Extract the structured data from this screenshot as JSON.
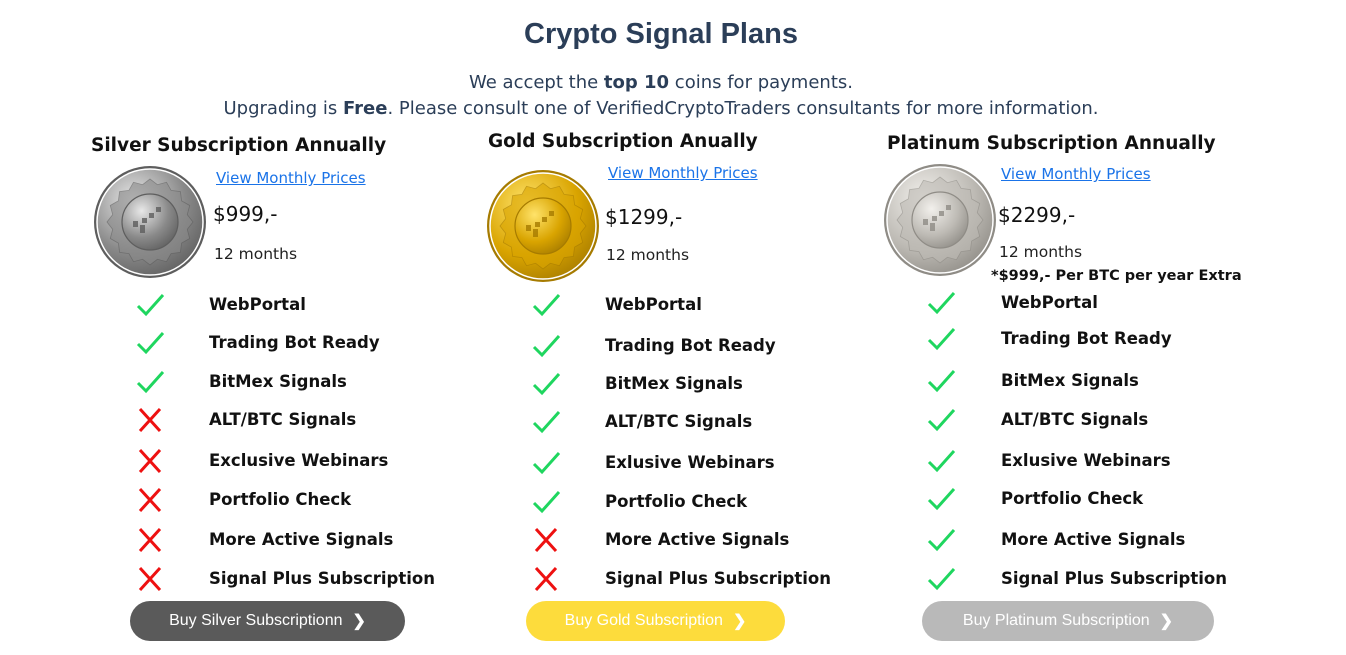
{
  "header": {
    "title": "Crypto Signal Plans",
    "line1_pre": "We accept the ",
    "line1_bold": "top 10",
    "line1_post": " coins for payments.",
    "line2_pre": "Upgrading is ",
    "line2_bold": "Free",
    "line2_post": ". Please consult one of VerifiedCryptoTraders consultants for more information."
  },
  "colors": {
    "check": "#1fd65f",
    "cross": "#ee1111",
    "silver_button": "#5a5a5a",
    "gold_button": "#fddc3c",
    "platinum_button": "#b9b9b9",
    "link": "#1a73e8",
    "title": "#2b3e58"
  },
  "plans": [
    {
      "title": "Silver Subscription Annually",
      "link": "View Monthly Prices",
      "price": "$999,-",
      "duration": "12 months",
      "coin": "silver",
      "features": [
        {
          "label": "WebPortal",
          "included": true
        },
        {
          "label": "Trading Bot Ready",
          "included": true
        },
        {
          "label": "BitMex Signals",
          "included": true
        },
        {
          "label": "ALT/BTC Signals",
          "included": false
        },
        {
          "label": "Exclusive Webinars",
          "included": false
        },
        {
          "label": "Portfolio Check",
          "included": false
        },
        {
          "label": "More Active Signals",
          "included": false
        },
        {
          "label": "Signal Plus Subscription",
          "included": false
        }
      ],
      "button": "Buy Silver Subscriptionn"
    },
    {
      "title": "Gold Subscription Anually",
      "link": "View Monthly Prices",
      "price": "$1299,-",
      "duration": "12 months",
      "coin": "gold",
      "features": [
        {
          "label": "WebPortal",
          "included": true
        },
        {
          "label": "Trading Bot Ready",
          "included": true
        },
        {
          "label": "BitMex Signals",
          "included": true
        },
        {
          "label": "ALT/BTC Signals",
          "included": true
        },
        {
          "label": "Exlusive Webinars",
          "included": true
        },
        {
          "label": "Portfolio Check",
          "included": true
        },
        {
          "label": "More Active Signals",
          "included": false
        },
        {
          "label": "Signal Plus Subscription",
          "included": false
        }
      ],
      "button": "Buy Gold Subscription"
    },
    {
      "title": "Platinum Subscription Annually",
      "link": "View Monthly Prices",
      "price": "$2299,-",
      "duration": "12 months",
      "extra": "*$999,- Per BTC per year Extra",
      "coin": "platinum",
      "features": [
        {
          "label": "WebPortal",
          "included": true
        },
        {
          "label": "Trading Bot Ready",
          "included": true
        },
        {
          "label": "BitMex Signals",
          "included": true
        },
        {
          "label": "ALT/BTC Signals",
          "included": true
        },
        {
          "label": "Exlusive Webinars",
          "included": true
        },
        {
          "label": "Portfolio Check",
          "included": true
        },
        {
          "label": "More Active Signals",
          "included": true
        },
        {
          "label": "Signal Plus Subscription",
          "included": true
        }
      ],
      "button": "Buy Platinum Subscription"
    }
  ]
}
